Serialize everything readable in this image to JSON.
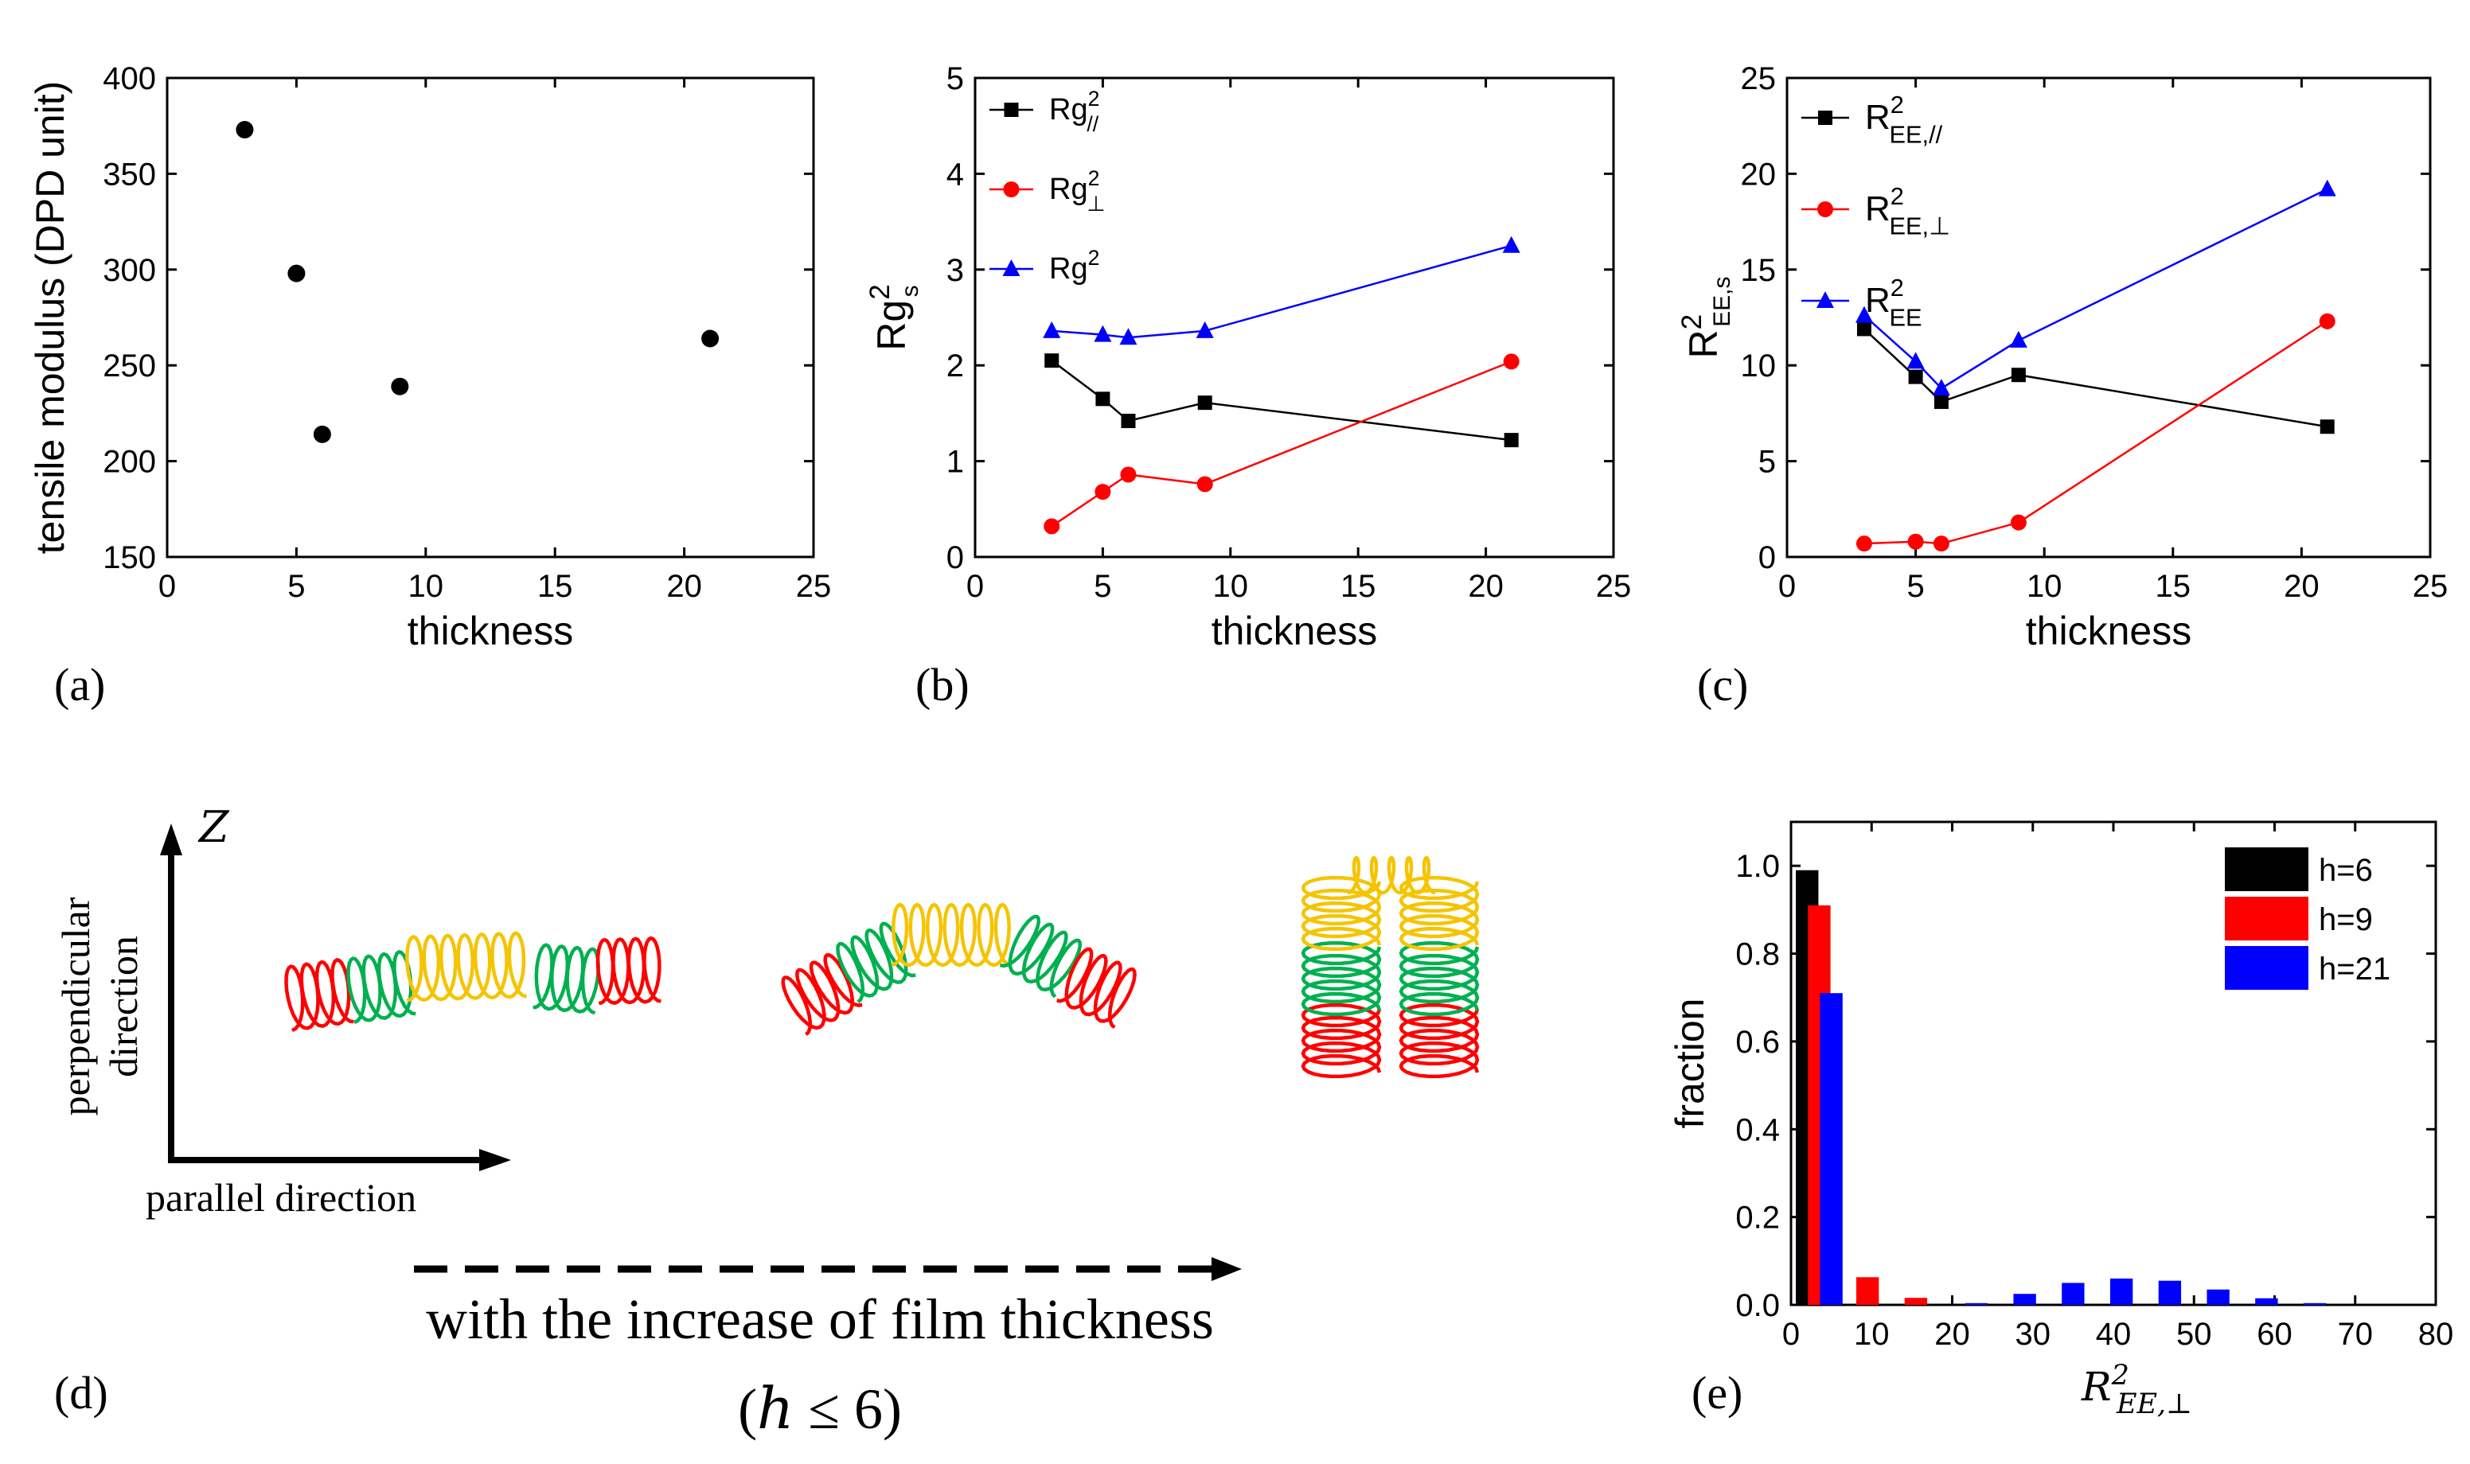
{
  "colors": {
    "black": "#000000",
    "red": "#ff0000",
    "blue": "#0000ff",
    "yellow": "#f5c400",
    "green": "#00b050"
  },
  "chart_data": [
    {
      "id": "a",
      "panel_label": "(a)",
      "type": "scatter",
      "xlabel": "thickness",
      "ylabel": "tensile modulus (DPD unit)",
      "xlim": [
        0,
        25
      ],
      "ylim": [
        150,
        400
      ],
      "xticks": [
        0,
        5,
        10,
        15,
        20,
        25
      ],
      "yticks": [
        150,
        200,
        250,
        300,
        350,
        400
      ],
      "series": [
        {
          "name": "tensile modulus",
          "color": "#000000",
          "marker": "circle",
          "x": [
            3,
            5,
            6,
            9,
            21
          ],
          "y": [
            373,
            298,
            214,
            239,
            264
          ]
        }
      ]
    },
    {
      "id": "b",
      "panel_label": "(b)",
      "type": "line",
      "xlabel": "thickness",
      "ylabel": "Rg",
      "ylabel_sup": "2",
      "ylabel_sub": "s",
      "xlim": [
        0,
        25
      ],
      "ylim": [
        0,
        5
      ],
      "xticks": [
        0,
        5,
        10,
        15,
        20,
        25
      ],
      "yticks": [
        0,
        1,
        2,
        3,
        4,
        5
      ],
      "legend_position": "top-left",
      "series": [
        {
          "name": "Rg",
          "sup": "2",
          "sub": "//",
          "color": "#000000",
          "marker": "square",
          "x": [
            3,
            5,
            6,
            9,
            21
          ],
          "y": [
            2.05,
            1.65,
            1.42,
            1.61,
            1.22
          ]
        },
        {
          "name": "Rg",
          "sup": "2",
          "sub": "⊥",
          "color": "#ff0000",
          "marker": "circle",
          "x": [
            3,
            5,
            6,
            9,
            21
          ],
          "y": [
            0.32,
            0.68,
            0.86,
            0.76,
            2.04
          ]
        },
        {
          "name": "Rg",
          "sup": "2",
          "sub": "",
          "color": "#0000ff",
          "marker": "triangle",
          "x": [
            3,
            5,
            6,
            9,
            21
          ],
          "y": [
            2.36,
            2.32,
            2.29,
            2.36,
            3.25
          ]
        }
      ]
    },
    {
      "id": "c",
      "panel_label": "(c)",
      "type": "line",
      "xlabel": "thickness",
      "ylabel": "R",
      "ylabel_sup": "2",
      "ylabel_sub": "EE,s",
      "xlim": [
        0,
        25
      ],
      "ylim": [
        0,
        25
      ],
      "xticks": [
        0,
        5,
        10,
        15,
        20,
        25
      ],
      "yticks": [
        0,
        5,
        10,
        15,
        20,
        25
      ],
      "legend_position": "top-left",
      "series": [
        {
          "name": "R",
          "sup": "2",
          "sub": "EE,//",
          "color": "#000000",
          "marker": "square",
          "x": [
            3,
            5,
            6,
            9,
            21
          ],
          "y": [
            11.9,
            9.4,
            8.1,
            9.5,
            6.8
          ]
        },
        {
          "name": "R",
          "sup": "2",
          "sub": "EE,⊥",
          "color": "#ff0000",
          "marker": "circle",
          "x": [
            3,
            5,
            6,
            9,
            21
          ],
          "y": [
            0.7,
            0.8,
            0.7,
            1.8,
            12.3
          ]
        },
        {
          "name": "R",
          "sup": "2",
          "sub": "EE",
          "color": "#0000ff",
          "marker": "triangle",
          "x": [
            3,
            5,
            6,
            9,
            21
          ],
          "y": [
            12.6,
            10.2,
            8.8,
            11.3,
            19.2
          ]
        }
      ]
    },
    {
      "id": "e",
      "panel_label": "(e)",
      "type": "bar",
      "xlabel": "R",
      "xlabel_sup": "2",
      "xlabel_sub": "EE,⊥",
      "ylabel": "fraction",
      "xlim": [
        0,
        80
      ],
      "ylim": [
        0,
        1.1
      ],
      "xticks": [
        0,
        10,
        20,
        30,
        40,
        50,
        60,
        70,
        80
      ],
      "yticks": [
        0.0,
        0.2,
        0.4,
        0.6,
        0.8,
        1.0
      ],
      "ytick_labels": [
        "0.0",
        "0.2",
        "0.4",
        "0.6",
        "0.8",
        "1.0"
      ],
      "legend_position": "top-right",
      "series": [
        {
          "name": "h=6",
          "color": "#000000",
          "x": [
            2
          ],
          "values": [
            0.99
          ]
        },
        {
          "name": "h=9",
          "color": "#ff0000",
          "x": [
            3.5,
            9.5,
            15.5
          ],
          "values": [
            0.91,
            0.063,
            0.016
          ]
        },
        {
          "name": "h=21",
          "color": "#0000ff",
          "x": [
            5,
            23,
            29,
            35,
            41,
            47,
            53,
            59,
            65
          ],
          "values": [
            0.71,
            0.004,
            0.025,
            0.05,
            0.06,
            0.055,
            0.035,
            0.015,
            0.004
          ]
        }
      ]
    }
  ],
  "diagram_d": {
    "panel_label": "(d)",
    "axis_z_label": "Z",
    "y_axis_label_line1": "perpendicular",
    "y_axis_label_line2": "direction",
    "x_axis_label": "parallel direction",
    "arrow_caption": "with the increase of film thickness",
    "condition_open": "(",
    "condition_var": "h",
    "condition_rest": " ≤ 6)"
  }
}
